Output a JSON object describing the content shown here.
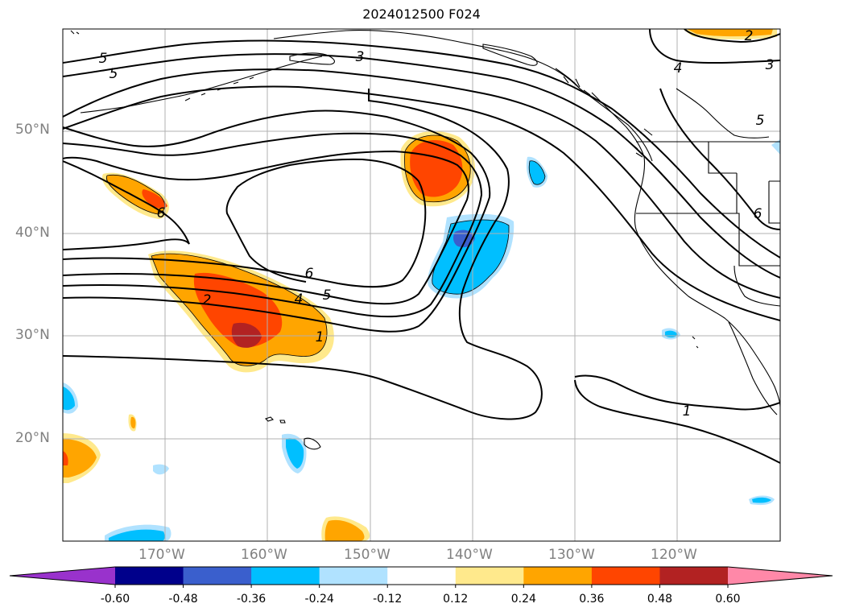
{
  "title": "2024012500 F024",
  "lat_labels": [
    {
      "text": "50°N",
      "lat": 50
    },
    {
      "text": "40°N",
      "lat": 40
    },
    {
      "text": "30°N",
      "lat": 30
    },
    {
      "text": "20°N",
      "lat": 20
    }
  ],
  "lon_labels": [
    {
      "text": "170°W",
      "lon": -170
    },
    {
      "text": "160°W",
      "lon": -160
    },
    {
      "text": "150°W",
      "lon": -150
    },
    {
      "text": "140°W",
      "lon": -140
    },
    {
      "text": "130°W",
      "lon": -130
    },
    {
      "text": "120°W",
      "lon": -120
    }
  ],
  "colorbar": {
    "ticks": [
      "-0.60",
      "-0.48",
      "-0.36",
      "-0.24",
      "-0.12",
      "0.12",
      "0.24",
      "0.36",
      "0.48",
      "0.60"
    ],
    "colors": [
      "#9932cc",
      "#00008b",
      "#3a5fcd",
      "#00bfff",
      "#b0e2ff",
      "#ffffff",
      "#ffe98c",
      "#ffa500",
      "#ff4500",
      "#b22222",
      "#ff88a8"
    ]
  },
  "contour_labels": [
    {
      "text": "5",
      "id": "5a"
    },
    {
      "text": "5",
      "id": "5b"
    },
    {
      "text": "3",
      "id": "3a"
    },
    {
      "text": "2",
      "id": "2a"
    },
    {
      "text": "3",
      "id": "3b"
    },
    {
      "text": "4",
      "id": "4a"
    },
    {
      "text": "5",
      "id": "5c"
    },
    {
      "text": "6",
      "id": "6a"
    },
    {
      "text": "6",
      "id": "6b"
    },
    {
      "text": "6",
      "id": "6c"
    },
    {
      "text": "5",
      "id": "5d"
    },
    {
      "text": "4",
      "id": "4b"
    },
    {
      "text": "2",
      "id": "2b"
    },
    {
      "text": "1",
      "id": "1a"
    },
    {
      "text": "1",
      "id": "1b"
    }
  ]
}
